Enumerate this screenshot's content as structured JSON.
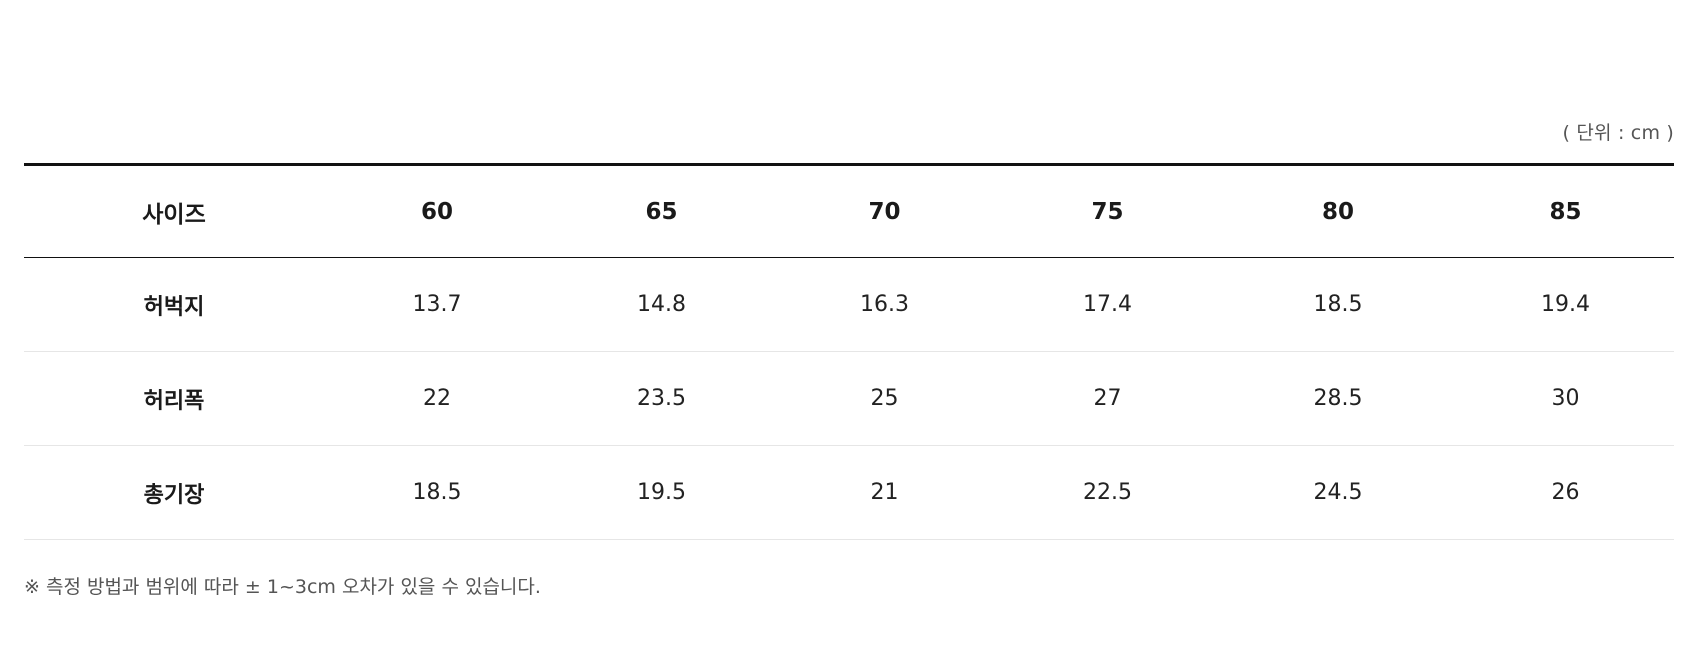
{
  "unit_label": "( 단위 : cm )",
  "table": {
    "headers": [
      "사이즈",
      "60",
      "65",
      "70",
      "75",
      "80",
      "85"
    ],
    "rows": [
      {
        "label": "허벅지",
        "values": [
          "13.7",
          "14.8",
          "16.3",
          "17.4",
          "18.5",
          "19.4"
        ]
      },
      {
        "label": "허리폭",
        "values": [
          "22",
          "23.5",
          "25",
          "27",
          "28.5",
          "30"
        ]
      },
      {
        "label": "총기장",
        "values": [
          "18.5",
          "19.5",
          "21",
          "22.5",
          "24.5",
          "26"
        ]
      }
    ]
  },
  "note": "※ 측정 방법과 범위에 따라 ± 1~3cm 오차가 있을 수 있습니다."
}
